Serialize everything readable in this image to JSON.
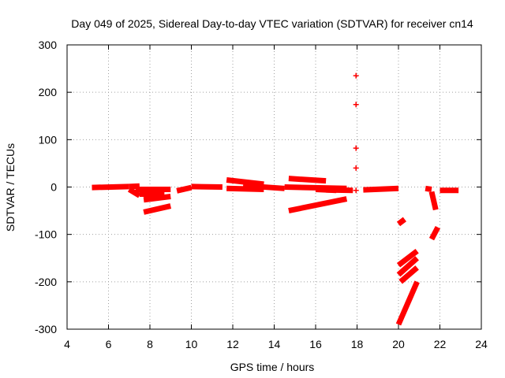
{
  "chart_data": {
    "type": "scatter",
    "title": "Day 049 of 2025, Sidereal Day-to-day VTEC variation (SDTVAR) for receiver cn14",
    "xlabel": "GPS time / hours",
    "ylabel": "SDTVAR / TECUs",
    "xlim": [
      4,
      24
    ],
    "ylim": [
      -300,
      300
    ],
    "xticks": [
      4,
      6,
      8,
      10,
      12,
      14,
      16,
      18,
      20,
      22,
      24
    ],
    "yticks": [
      -300,
      -200,
      -100,
      0,
      100,
      200,
      300
    ],
    "grid": true,
    "marker": "+",
    "series_color": "#ff0000",
    "segments": [
      {
        "x": [
          5.2,
          7.0
        ],
        "y": [
          -1,
          1
        ]
      },
      {
        "x": [
          7.0,
          7.5
        ],
        "y": [
          1,
          2
        ]
      },
      {
        "x": [
          7.0,
          7.5
        ],
        "y": [
          -5,
          -18
        ]
      },
      {
        "x": [
          7.3,
          9.0
        ],
        "y": [
          -5,
          -5
        ]
      },
      {
        "x": [
          7.5,
          8.7
        ],
        "y": [
          -15,
          -15
        ]
      },
      {
        "x": [
          7.7,
          9.0
        ],
        "y": [
          -27,
          -20
        ]
      },
      {
        "x": [
          7.7,
          9.0
        ],
        "y": [
          -53,
          -40
        ]
      },
      {
        "x": [
          9.3,
          10.0
        ],
        "y": [
          -8,
          -1
        ]
      },
      {
        "x": [
          10.0,
          11.5
        ],
        "y": [
          1,
          0
        ]
      },
      {
        "x": [
          11.7,
          13.5
        ],
        "y": [
          15,
          6
        ]
      },
      {
        "x": [
          11.7,
          13.5
        ],
        "y": [
          -3,
          -5
        ]
      },
      {
        "x": [
          12.5,
          14.5
        ],
        "y": [
          3,
          -3
        ]
      },
      {
        "x": [
          14.5,
          17.5
        ],
        "y": [
          0,
          -3
        ]
      },
      {
        "x": [
          14.7,
          16.5
        ],
        "y": [
          18,
          13
        ]
      },
      {
        "x": [
          14.7,
          17.5
        ],
        "y": [
          -50,
          -25
        ]
      },
      {
        "x": [
          16.0,
          17.0
        ],
        "y": [
          -5,
          -7
        ]
      },
      {
        "x": [
          16.5,
          17.8
        ],
        "y": [
          -6,
          -7
        ]
      },
      {
        "x": [
          18.3,
          20.0
        ],
        "y": [
          -6,
          -3
        ]
      },
      {
        "x": [
          20.0,
          20.3
        ],
        "y": [
          -78,
          -68
        ]
      },
      {
        "x": [
          20.0,
          20.9
        ],
        "y": [
          -165,
          -135
        ]
      },
      {
        "x": [
          20.0,
          20.9
        ],
        "y": [
          -185,
          -150
        ]
      },
      {
        "x": [
          20.1,
          20.9
        ],
        "y": [
          -200,
          -170
        ]
      },
      {
        "x": [
          20.0,
          20.9
        ],
        "y": [
          -290,
          -200
        ]
      },
      {
        "x": [
          21.3,
          21.6
        ],
        "y": [
          -3,
          -5
        ]
      },
      {
        "x": [
          21.6,
          21.8
        ],
        "y": [
          -10,
          -48
        ]
      },
      {
        "x": [
          21.6,
          21.9
        ],
        "y": [
          -110,
          -85
        ]
      },
      {
        "x": [
          22.0,
          22.9
        ],
        "y": [
          -7,
          -7
        ]
      }
    ],
    "points": [
      {
        "x": 17.95,
        "y": 235
      },
      {
        "x": 17.95,
        "y": 174
      },
      {
        "x": 17.95,
        "y": 82
      },
      {
        "x": 17.95,
        "y": 40
      },
      {
        "x": 17.95,
        "y": -7
      }
    ]
  }
}
